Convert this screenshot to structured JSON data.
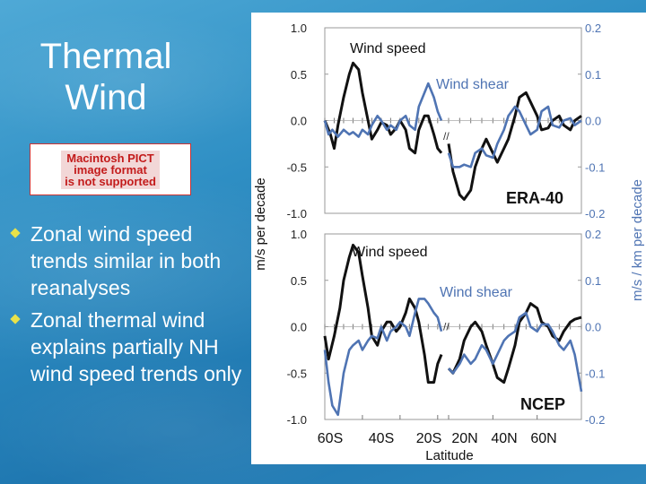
{
  "slide": {
    "title": "Thermal Wind",
    "placeholder_image_text": "Macintosh PICT\nimage format\nis not supported",
    "bullets": [
      "Zonal wind speed trends similar in both reanalyses",
      "Zonal thermal wind explains partially NH wind speed trends only"
    ]
  },
  "colors": {
    "background": "#2f8fc4",
    "bullet": "#e9e24a",
    "wind_speed": "#111111",
    "wind_shear": "#4f74b3"
  },
  "chart_data": [
    {
      "type": "line",
      "panel_label": "ERA-40",
      "ylabel": "m/s per decade",
      "y2label": "m/s / km per decade",
      "ylim": [
        -1.0,
        1.0
      ],
      "y2lim": [
        -0.2,
        0.2
      ],
      "yticks": [
        "1.0",
        "0.5",
        "0.0",
        "-0.5",
        "-1.0"
      ],
      "y2ticks": [
        "0.2",
        "0.1",
        "0.0",
        "-0.1",
        "-0.2"
      ],
      "series": [
        {
          "name": "Wind speed",
          "axis": "left",
          "x": [
            -80,
            -77,
            -75,
            -73,
            -70,
            -67,
            -65,
            -62,
            -60,
            -57,
            -55,
            -52,
            -50,
            -47,
            -45,
            -42,
            -40,
            -37,
            -35,
            -32,
            -30,
            -27,
            -25,
            -22,
            -20,
            -18,
            20,
            22,
            25,
            27,
            30,
            32,
            35,
            37,
            40,
            42,
            45,
            47,
            50,
            52,
            55,
            57,
            60,
            62,
            65,
            67,
            70,
            72,
            75,
            77,
            80
          ],
          "y": [
            0.0,
            -0.15,
            -0.3,
            -0.05,
            0.25,
            0.5,
            0.62,
            0.55,
            0.3,
            0.0,
            -0.2,
            -0.1,
            -0.02,
            -0.05,
            -0.15,
            -0.08,
            0.0,
            -0.1,
            -0.3,
            -0.35,
            -0.1,
            0.05,
            0.05,
            -0.15,
            -0.3,
            -0.35,
            -0.25,
            -0.55,
            -0.8,
            -0.85,
            -0.75,
            -0.5,
            -0.3,
            -0.2,
            -0.35,
            -0.45,
            -0.3,
            -0.2,
            0.05,
            0.25,
            0.3,
            0.2,
            0.05,
            -0.1,
            -0.08,
            0.0,
            0.05,
            -0.05,
            -0.1,
            0.0,
            0.05
          ]
        },
        {
          "name": "Wind shear",
          "axis": "right",
          "x": [
            -80,
            -78,
            -76,
            -73,
            -70,
            -67,
            -65,
            -62,
            -60,
            -57,
            -55,
            -52,
            -50,
            -47,
            -45,
            -42,
            -40,
            -37,
            -35,
            -32,
            -30,
            -27,
            -25,
            -22,
            -20,
            -18,
            20,
            22,
            25,
            27,
            30,
            32,
            35,
            37,
            40,
            42,
            45,
            47,
            50,
            52,
            55,
            57,
            60,
            62,
            65,
            67,
            70,
            72,
            75,
            77,
            80
          ],
          "y": [
            0.0,
            -0.03,
            -0.02,
            -0.035,
            -0.02,
            -0.03,
            -0.025,
            -0.035,
            -0.02,
            -0.03,
            -0.01,
            0.01,
            0.0,
            -0.02,
            -0.01,
            -0.02,
            0.0,
            0.01,
            -0.01,
            -0.02,
            0.03,
            0.06,
            0.08,
            0.05,
            0.02,
            0.0,
            -0.07,
            -0.1,
            -0.1,
            -0.095,
            -0.1,
            -0.07,
            -0.06,
            -0.075,
            -0.08,
            -0.05,
            -0.02,
            0.01,
            0.03,
            0.02,
            -0.01,
            -0.03,
            -0.02,
            0.02,
            0.03,
            -0.01,
            -0.015,
            0.0,
            0.005,
            -0.01,
            0.0
          ]
        }
      ],
      "legend": [
        "Wind speed",
        "Wind shear"
      ]
    },
    {
      "type": "line",
      "panel_label": "NCEP",
      "ylabel": "m/s per decade",
      "y2label": "m/s / km per decade",
      "xlabel": "Latitude",
      "ylim": [
        -1.0,
        1.0
      ],
      "y2lim": [
        -0.2,
        0.2
      ],
      "yticks": [
        "1.0",
        "0.5",
        "0.0",
        "-0.5",
        "-1.0"
      ],
      "y2ticks": [
        "0.2",
        "0.1",
        "0.0",
        "-0.1",
        "-0.2"
      ],
      "xticks": [
        "60S",
        "40S",
        "20S",
        "20N",
        "40N",
        "60N"
      ],
      "series": [
        {
          "name": "Wind speed",
          "axis": "left",
          "x": [
            -80,
            -78,
            -75,
            -72,
            -70,
            -67,
            -65,
            -62,
            -60,
            -57,
            -55,
            -52,
            -50,
            -47,
            -45,
            -42,
            -40,
            -37,
            -35,
            -32,
            -30,
            -27,
            -25,
            -22,
            -20,
            -18,
            20,
            22,
            25,
            27,
            30,
            32,
            35,
            37,
            40,
            42,
            45,
            47,
            50,
            52,
            55,
            57,
            60,
            62,
            65,
            67,
            70,
            72,
            75,
            77,
            80
          ],
          "y": [
            -0.1,
            -0.35,
            -0.1,
            0.2,
            0.5,
            0.75,
            0.88,
            0.8,
            0.55,
            0.2,
            -0.1,
            -0.2,
            -0.05,
            0.05,
            0.05,
            -0.05,
            0.0,
            0.15,
            0.3,
            0.2,
            0.05,
            -0.3,
            -0.6,
            -0.6,
            -0.4,
            -0.3,
            -0.45,
            -0.5,
            -0.35,
            -0.15,
            0.0,
            0.05,
            -0.05,
            -0.2,
            -0.4,
            -0.55,
            -0.6,
            -0.45,
            -0.2,
            0.05,
            0.15,
            0.25,
            0.2,
            0.05,
            0.0,
            -0.1,
            -0.15,
            -0.05,
            0.05,
            0.08,
            0.1
          ]
        },
        {
          "name": "Wind shear",
          "axis": "right",
          "x": [
            -80,
            -78,
            -76,
            -73,
            -70,
            -67,
            -65,
            -62,
            -60,
            -57,
            -55,
            -52,
            -50,
            -47,
            -45,
            -42,
            -40,
            -37,
            -35,
            -32,
            -30,
            -27,
            -25,
            -22,
            -20,
            -18,
            20,
            22,
            25,
            27,
            30,
            32,
            35,
            37,
            40,
            42,
            45,
            47,
            50,
            52,
            55,
            57,
            60,
            62,
            65,
            67,
            70,
            72,
            75,
            77,
            80
          ],
          "y": [
            -0.05,
            -0.12,
            -0.17,
            -0.19,
            -0.1,
            -0.05,
            -0.04,
            -0.03,
            -0.05,
            -0.03,
            -0.02,
            -0.025,
            0.0,
            -0.03,
            -0.01,
            0.0,
            0.01,
            0.0,
            -0.02,
            0.03,
            0.06,
            0.06,
            0.05,
            0.03,
            0.02,
            -0.01,
            -0.09,
            -0.1,
            -0.08,
            -0.06,
            -0.08,
            -0.07,
            -0.04,
            -0.05,
            -0.08,
            -0.06,
            -0.03,
            -0.02,
            -0.01,
            0.02,
            0.03,
            0.0,
            -0.01,
            0.005,
            0.005,
            -0.01,
            -0.04,
            -0.05,
            -0.03,
            -0.06,
            -0.14
          ]
        }
      ],
      "legend": [
        "Wind speed",
        "Wind shear"
      ]
    }
  ]
}
